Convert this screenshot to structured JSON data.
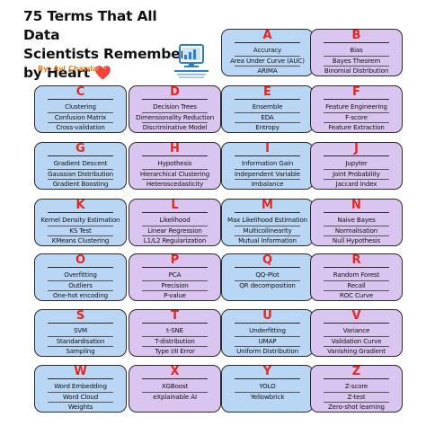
{
  "header": {
    "title_line1": "75 Terms That All Data",
    "title_line2": "Scientists Remember",
    "title_line3": "by Heart",
    "heart": "❤️",
    "byline": "By: Avi Chawla",
    "logo_icon": "daily-dose-of-ds-logo-icon"
  },
  "colors": {
    "blue_card": "#b9d7f5",
    "purple_card": "#d9c5ef",
    "letter": "#e3261f",
    "byline": "#e87d1a"
  },
  "cards": [
    {
      "letter": "A",
      "terms": [
        "Accuracy",
        "Area Under Curve (AUC)",
        "ARIMA"
      ]
    },
    {
      "letter": "B",
      "terms": [
        "Bias",
        "Bayes Theorem",
        "Binomial Distribution"
      ]
    },
    {
      "letter": "C",
      "terms": [
        "Clustering",
        "Confusion Matrix",
        "Cross-validation"
      ]
    },
    {
      "letter": "D",
      "terms": [
        "Decision Trees",
        "Dimensionality Reduction",
        "Discriminative Model"
      ]
    },
    {
      "letter": "E",
      "terms": [
        "Ensemble",
        "EDA",
        "Entropy"
      ]
    },
    {
      "letter": "F",
      "terms": [
        "Feature Engineering",
        "F-score",
        "Feature Extraction"
      ]
    },
    {
      "letter": "G",
      "terms": [
        "Gradient Descent",
        "Gaussian Distribution",
        "Gradient Boosting"
      ]
    },
    {
      "letter": "H",
      "terms": [
        "Hypothesis",
        "Hierarchical Clustering",
        "Heteroscedasticity"
      ]
    },
    {
      "letter": "I",
      "terms": [
        "Information Gain",
        "Independent Variable",
        "Imbalance"
      ]
    },
    {
      "letter": "J",
      "terms": [
        "Jupyter",
        "Joint Probability",
        "Jaccard Index"
      ]
    },
    {
      "letter": "K",
      "terms": [
        "Kernel Density Estimation",
        "KS Test",
        "KMeans Clustering"
      ]
    },
    {
      "letter": "L",
      "terms": [
        "Likelihood",
        "Linear Regression",
        "L1/L2 Regularization"
      ]
    },
    {
      "letter": "M",
      "terms": [
        "Max Likelihood Estimation",
        "Multicollinearity",
        "Mutual Information"
      ]
    },
    {
      "letter": "N",
      "terms": [
        "Naive Bayes",
        "Normalisation",
        "Null Hypothesis"
      ]
    },
    {
      "letter": "O",
      "terms": [
        "Overfitting",
        "Outliers",
        "One-hot encoding"
      ]
    },
    {
      "letter": "P",
      "terms": [
        "PCA",
        "Precision",
        "P-value"
      ]
    },
    {
      "letter": "Q",
      "terms": [
        "QQ-Plot",
        "QR decomposition"
      ]
    },
    {
      "letter": "R",
      "terms": [
        "Random Forest",
        "Recall",
        "ROC Curve"
      ]
    },
    {
      "letter": "S",
      "terms": [
        "SVM",
        "Standardisation",
        "Sampling"
      ]
    },
    {
      "letter": "T",
      "terms": [
        "t-SNE",
        "T-distribution",
        "Type I/II Error"
      ]
    },
    {
      "letter": "U",
      "terms": [
        "Underfitting",
        "UMAP",
        "Uniform Distribution"
      ]
    },
    {
      "letter": "V",
      "terms": [
        "Variance",
        "Validation Curve",
        "Vanishing Gradient"
      ]
    },
    {
      "letter": "W",
      "terms": [
        "Word Embedding",
        "Word Cloud",
        "Weights"
      ]
    },
    {
      "letter": "X",
      "terms": [
        "XGBoost",
        "eXplainable AI"
      ]
    },
    {
      "letter": "Y",
      "terms": [
        "YOLO",
        "Yellowbrick"
      ]
    },
    {
      "letter": "Z",
      "terms": [
        "Z-score",
        "Z-test",
        "Zero-shot learning"
      ]
    }
  ]
}
